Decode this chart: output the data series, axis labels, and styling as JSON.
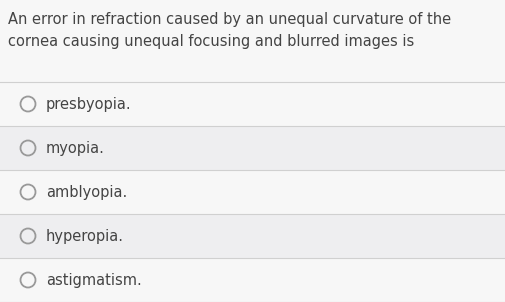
{
  "question_line1": "An error in refraction caused by an unequal curvature of the",
  "question_line2": "cornea causing unequal focusing and blurred images is",
  "options": [
    "presbyopia.",
    "myopia.",
    "amblyopia.",
    "hyperopia.",
    "astigmatism."
  ],
  "bg_color": "#eeeef0",
  "question_bg": "#f7f7f7",
  "option_bg_even": "#f7f7f7",
  "option_bg_odd": "#eeeef0",
  "text_color": "#444444",
  "circle_color": "#999999",
  "divider_color": "#d0d0d0",
  "question_fontsize": 10.5,
  "option_fontsize": 10.5,
  "fig_width": 5.05,
  "fig_height": 3.02,
  "dpi": 100
}
